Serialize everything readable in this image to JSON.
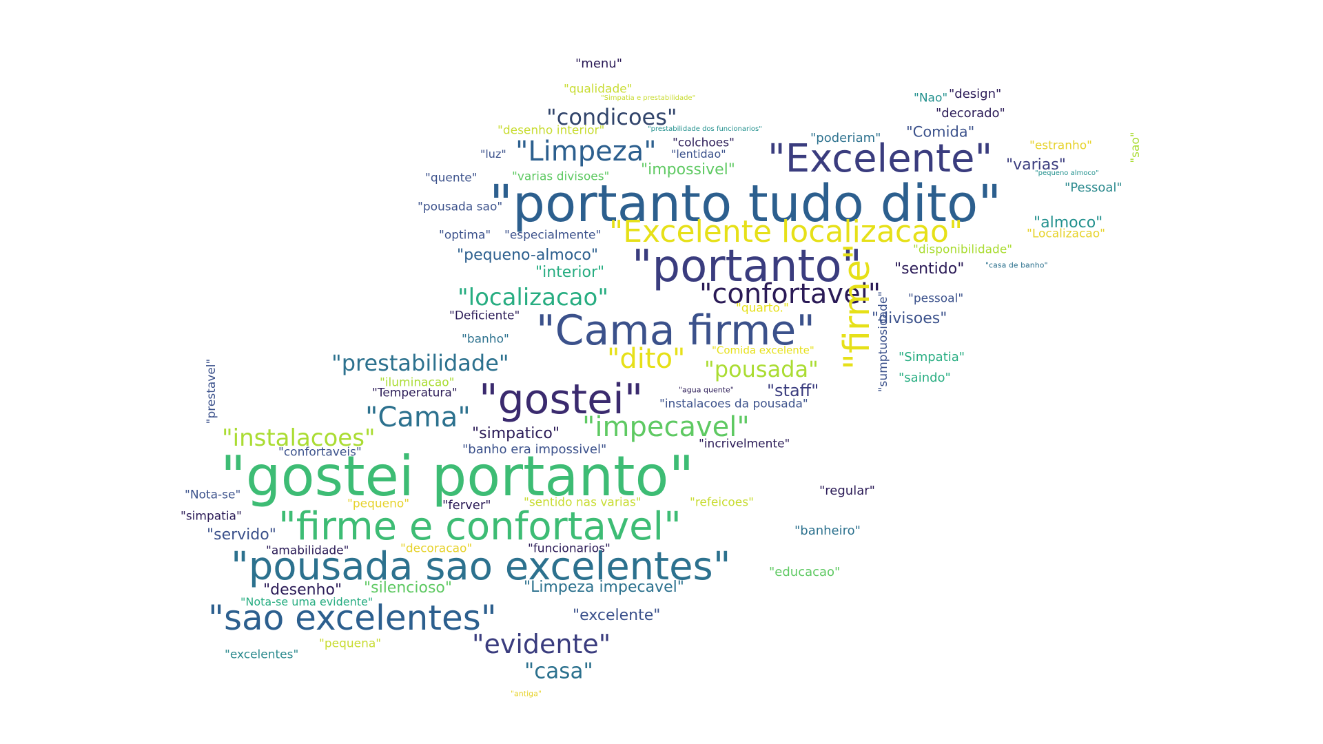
{
  "palette": {
    "c1": "#440154",
    "c2": "#472c7a",
    "c3": "#3b518b",
    "c4": "#2c718e",
    "c5": "#21908d",
    "c6": "#27ad81",
    "c7": "#3dbc74",
    "c8": "#5ec962",
    "c9": "#aadc32",
    "c10": "#dde318",
    "c11": "#e6e018"
  },
  "words": [
    {
      "text": "\"menu\"",
      "color": "#2a1a56"
    },
    {
      "text": "\"qualidade\"",
      "color": "#c8dc32"
    },
    {
      "text": "\"Simpatia e prestabilidade\"",
      "color": "#c8dc32"
    },
    {
      "text": "\"condicoes\"",
      "color": "#31446b"
    },
    {
      "text": "\"desenho interior\"",
      "color": "#c8dc32"
    },
    {
      "text": "\"prestabilidade dos funcionarios\"",
      "color": "#21908d"
    },
    {
      "text": "\"Nao\"",
      "color": "#21908d"
    },
    {
      "text": "\"design\"",
      "color": "#2a1a56"
    },
    {
      "text": "\"decorado\"",
      "color": "#2a1a56"
    },
    {
      "text": "\"Comida\"",
      "color": "#3b518b"
    },
    {
      "text": "\"poderiam\"",
      "color": "#2c718e"
    },
    {
      "text": "\"colchoes\"",
      "color": "#2a1a56"
    },
    {
      "text": "\"estranho\"",
      "color": "#e6d22a"
    },
    {
      "text": "\"luz\"",
      "color": "#3b518b"
    },
    {
      "text": "\"Limpeza\"",
      "color": "#2c5f8e"
    },
    {
      "text": "\"lentidao\"",
      "color": "#3b518b"
    },
    {
      "text": "\"Excelente\"",
      "color": "#3a3c7e"
    },
    {
      "text": "\"varias\"",
      "color": "#3a3c7e"
    },
    {
      "text": "\"impossivel\"",
      "color": "#5ec962"
    },
    {
      "text": "\"quente\"",
      "color": "#3b518b"
    },
    {
      "text": "\"varias divisoes\"",
      "color": "#5ec962"
    },
    {
      "text": "\"pequeno almoco\"",
      "color": "#21908d"
    },
    {
      "text": "\"Pessoal\"",
      "color": "#2c8a8e"
    },
    {
      "text": "\"sao\"",
      "color": "#aadc32"
    },
    {
      "text": "\"portanto tudo dito\"",
      "color": "#2c5f8e"
    },
    {
      "text": "\"pousada sao\"",
      "color": "#3b518b"
    },
    {
      "text": "\"optima\"",
      "color": "#3b518b"
    },
    {
      "text": "\"especialmente\"",
      "color": "#3b518b"
    },
    {
      "text": "\"Excelente localizacao\"",
      "color": "#e6e018"
    },
    {
      "text": "\"almoco\"",
      "color": "#21908d"
    },
    {
      "text": "\"Localizacao\"",
      "color": "#e6d22a"
    },
    {
      "text": "\"disponibilidade\"",
      "color": "#aadc32"
    },
    {
      "text": "\"pequeno-almoco\"",
      "color": "#2c5f8e"
    },
    {
      "text": "\"portanto\"",
      "color": "#3a3c7e"
    },
    {
      "text": "\"sentido\"",
      "color": "#2a1a56"
    },
    {
      "text": "\"casa de banho\"",
      "color": "#2c718e"
    },
    {
      "text": "\"interior\"",
      "color": "#27ad81"
    },
    {
      "text": "\"localizacao\"",
      "color": "#27ad81"
    },
    {
      "text": "\"confortavel\"",
      "color": "#2a1a56"
    },
    {
      "text": "\"pessoal\"",
      "color": "#3b518b"
    },
    {
      "text": "\"quarto.\"",
      "color": "#e6e018"
    },
    {
      "text": "\"Deficiente\"",
      "color": "#2a1a56"
    },
    {
      "text": "\"Cama firme\"",
      "color": "#3b518b"
    },
    {
      "text": "\"divisoes\"",
      "color": "#3b518b"
    },
    {
      "text": "\"firme\"",
      "color": "#e6e018"
    },
    {
      "text": "\"banho\"",
      "color": "#2c718e"
    },
    {
      "text": "\"Comida excelente\"",
      "color": "#e6e018"
    },
    {
      "text": "\"prestabilidade\"",
      "color": "#2c718e"
    },
    {
      "text": "\"dito\"",
      "color": "#e6e018"
    },
    {
      "text": "\"pousada\"",
      "color": "#aadc32"
    },
    {
      "text": "\"sumptuosidade\"",
      "color": "#3b518b"
    },
    {
      "text": "\"Simpatia\"",
      "color": "#27ad81"
    },
    {
      "text": "\"saindo\"",
      "color": "#27ad81"
    },
    {
      "text": "\"iluminacao\"",
      "color": "#aadc32"
    },
    {
      "text": "\"Temperatura\"",
      "color": "#2a1a56"
    },
    {
      "text": "\"gostei\"",
      "color": "#3a2a6e"
    },
    {
      "text": "\"agua quente\"",
      "color": "#2a1a56"
    },
    {
      "text": "\"staff\"",
      "color": "#3a3c7e"
    },
    {
      "text": "\"instalacoes da pousada\"",
      "color": "#3b518b"
    },
    {
      "text": "\"prestavel\"",
      "color": "#3b518b"
    },
    {
      "text": "\"Cama\"",
      "color": "#2c718e"
    },
    {
      "text": "\"impecavel\"",
      "color": "#5ec962"
    },
    {
      "text": "\"instalacoes\"",
      "color": "#aadc32"
    },
    {
      "text": "\"simpatico\"",
      "color": "#2a1a56"
    },
    {
      "text": "\"incrivelmente\"",
      "color": "#2a1a56"
    },
    {
      "text": "\"confortaveis\"",
      "color": "#3b518b"
    },
    {
      "text": "\"banho era impossivel\"",
      "color": "#3b518b"
    },
    {
      "text": "\"gostei portanto\"",
      "color": "#3dbc74"
    },
    {
      "text": "\"Nota-se\"",
      "color": "#3b518b"
    },
    {
      "text": "\"regular\"",
      "color": "#2a1a56"
    },
    {
      "text": "\"pequeno\"",
      "color": "#e6d22a"
    },
    {
      "text": "\"ferver\"",
      "color": "#2a1a56"
    },
    {
      "text": "\"sentido nas varias\"",
      "color": "#c8dc32"
    },
    {
      "text": "\"refeicoes\"",
      "color": "#c8dc32"
    },
    {
      "text": "\"simpatia\"",
      "color": "#2a1a56"
    },
    {
      "text": "\"firme e confortavel\"",
      "color": "#3dbc74"
    },
    {
      "text": "\"servido\"",
      "color": "#3b518b"
    },
    {
      "text": "\"banheiro\"",
      "color": "#2c718e"
    },
    {
      "text": "\"amabilidade\"",
      "color": "#2a1a56"
    },
    {
      "text": "\"decoracao\"",
      "color": "#e6d22a"
    },
    {
      "text": "\"funcionarios\"",
      "color": "#2a1a56"
    },
    {
      "text": "\"pousada sao excelentes\"",
      "color": "#2c718e"
    },
    {
      "text": "\"educacao\"",
      "color": "#5ec962"
    },
    {
      "text": "\"desenho\"",
      "color": "#2a1a56"
    },
    {
      "text": "\"silencioso\"",
      "color": "#5ec962"
    },
    {
      "text": "\"Limpeza impecavel\"",
      "color": "#2c718e"
    },
    {
      "text": "\"Nota-se uma evidente\"",
      "color": "#27ad81"
    },
    {
      "text": "\"sao excelentes\"",
      "color": "#2c5f8e"
    },
    {
      "text": "\"excelente\"",
      "color": "#3b518b"
    },
    {
      "text": "\"evidente\"",
      "color": "#3a3c7e"
    },
    {
      "text": "\"pequena\"",
      "color": "#c8dc32"
    },
    {
      "text": "\"excelentes\"",
      "color": "#2c8a8e"
    },
    {
      "text": "\"casa\"",
      "color": "#2c718e"
    },
    {
      "text": "\"antiga\"",
      "color": "#e6d22a"
    }
  ]
}
